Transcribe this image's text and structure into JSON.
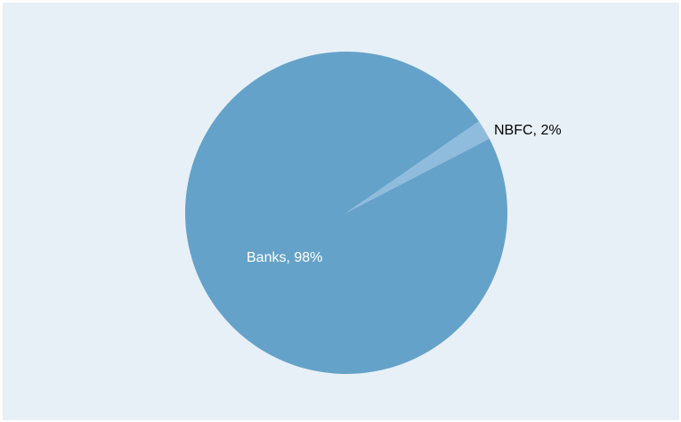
{
  "chart_data": {
    "type": "pie",
    "title": "",
    "slices": [
      {
        "label": "Banks",
        "value": 98,
        "display": "Banks, 98%",
        "color": "#65a2c9",
        "label_color": "#ffffff"
      },
      {
        "label": "NBFC",
        "value": 2,
        "display": "NBFC, 2%",
        "color": "#8fbcdc",
        "label_color": "#000000"
      }
    ]
  },
  "colors": {
    "background": "#e8f0f7",
    "outer": "#ffffff"
  }
}
